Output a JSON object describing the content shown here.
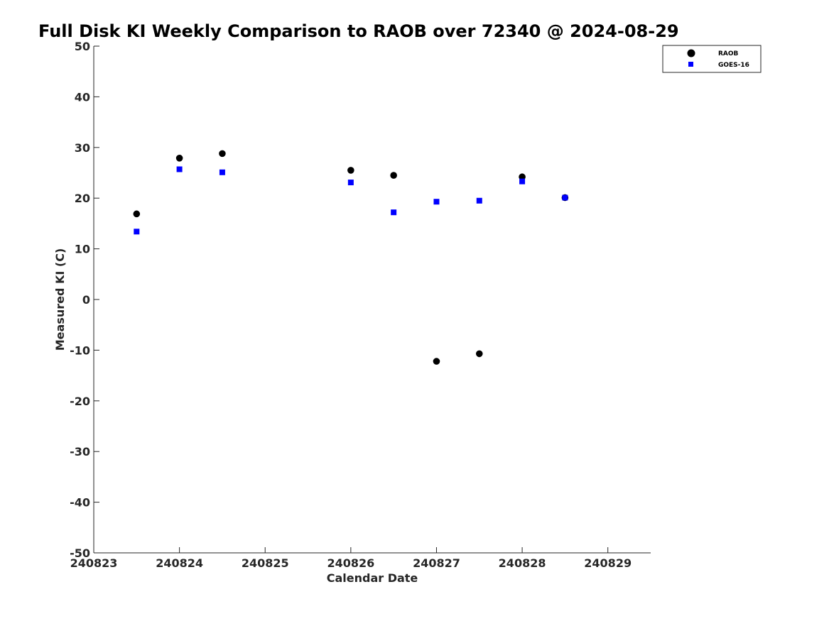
{
  "chart_data": {
    "type": "scatter",
    "title": "Full Disk KI Weekly Comparison to RAOB over 72340 @ 2024-08-29",
    "xlabel": "Calendar Date",
    "ylabel": "Measured KI (C)",
    "xlim": [
      "2024-08-23",
      "2024-08-29 12:00"
    ],
    "ylim": [
      -50,
      50
    ],
    "x_ticks": [
      {
        "x": "2024-08-23",
        "label": "240823"
      },
      {
        "x": "2024-08-24",
        "label": "240824"
      },
      {
        "x": "2024-08-25",
        "label": "240825"
      },
      {
        "x": "2024-08-26",
        "label": "240826"
      },
      {
        "x": "2024-08-27",
        "label": "240827"
      },
      {
        "x": "2024-08-28",
        "label": "240828"
      },
      {
        "x": "2024-08-29",
        "label": "240829"
      }
    ],
    "y_ticks": [
      50,
      40,
      30,
      20,
      10,
      0,
      -10,
      -20,
      -30,
      -40,
      -50
    ],
    "grid": false,
    "legend_position": "top-right",
    "series": [
      {
        "name": "RAOB",
        "marker": "circle",
        "color": "#000000",
        "points": [
          {
            "x": "2024-08-23 12:00",
            "y": 16.9
          },
          {
            "x": "2024-08-24 00:00",
            "y": 27.9
          },
          {
            "x": "2024-08-24 12:00",
            "y": 28.8
          },
          {
            "x": "2024-08-26 00:00",
            "y": 25.5
          },
          {
            "x": "2024-08-26 12:00",
            "y": 24.5
          },
          {
            "x": "2024-08-27 00:00",
            "y": -12.2
          },
          {
            "x": "2024-08-27 12:00",
            "y": -10.7
          },
          {
            "x": "2024-08-28 00:00",
            "y": 24.2
          },
          {
            "x": "2024-08-28 12:00",
            "y": 20.1
          }
        ]
      },
      {
        "name": "GOES-16",
        "marker": "square",
        "color": "#0000ff",
        "points": [
          {
            "x": "2024-08-23 12:00",
            "y": 13.4
          },
          {
            "x": "2024-08-24 00:00",
            "y": 25.7
          },
          {
            "x": "2024-08-24 12:00",
            "y": 25.1
          },
          {
            "x": "2024-08-26 00:00",
            "y": 23.1
          },
          {
            "x": "2024-08-26 12:00",
            "y": 17.2
          },
          {
            "x": "2024-08-27 00:00",
            "y": 19.3
          },
          {
            "x": "2024-08-27 12:00",
            "y": 19.5
          },
          {
            "x": "2024-08-28 00:00",
            "y": 23.3
          },
          {
            "x": "2024-08-28 12:00",
            "y": 20.1
          }
        ]
      }
    ]
  }
}
